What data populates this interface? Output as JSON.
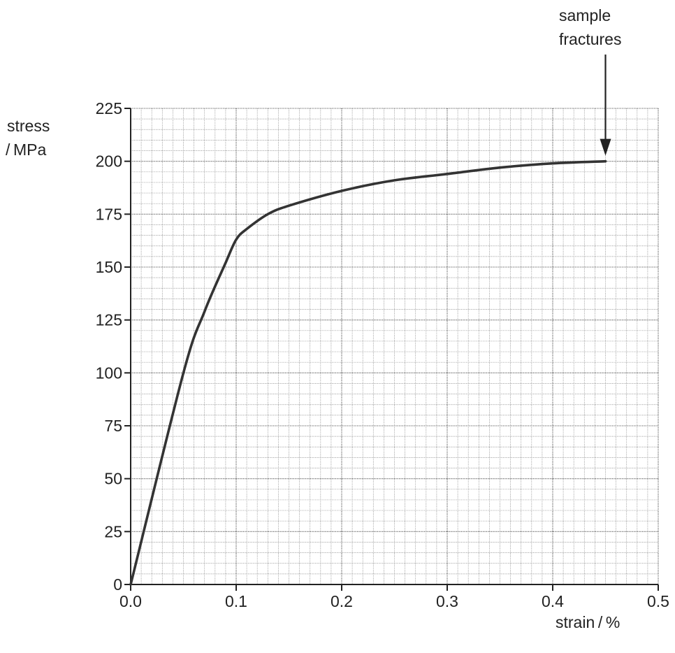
{
  "chart_data": {
    "type": "line",
    "ylabel_line1": "stress",
    "ylabel_line2": "/ MPa",
    "xlabel": "strain / %",
    "xlim": [
      0,
      0.5
    ],
    "ylim": [
      0,
      225
    ],
    "x_ticks": [
      "0.0",
      "0.1",
      "0.2",
      "0.3",
      "0.4",
      "0.5"
    ],
    "y_ticks": [
      "0",
      "25",
      "50",
      "75",
      "100",
      "125",
      "150",
      "175",
      "200",
      "225"
    ],
    "x_tick_values": [
      0,
      0.1,
      0.2,
      0.3,
      0.4,
      0.5
    ],
    "y_tick_values": [
      0,
      25,
      50,
      75,
      100,
      125,
      150,
      175,
      200,
      225
    ],
    "grid": true,
    "series": [
      {
        "x": [
          0,
          0.05,
          0.07,
          0.09,
          0.1,
          0.11,
          0.13,
          0.15,
          0.2,
          0.25,
          0.3,
          0.35,
          0.4,
          0.45
        ],
        "y": [
          0,
          100,
          129,
          152,
          163,
          168,
          175,
          179,
          186,
          191,
          194,
          197,
          199,
          200
        ]
      }
    ],
    "annotation": {
      "line1": "sample",
      "line2": "fractures",
      "x": 0.45,
      "y": 200
    },
    "colors": {
      "curve": "#333333",
      "grid_minor": "#8a8a8a",
      "grid_major": "#555555",
      "axis": "#222222"
    }
  }
}
